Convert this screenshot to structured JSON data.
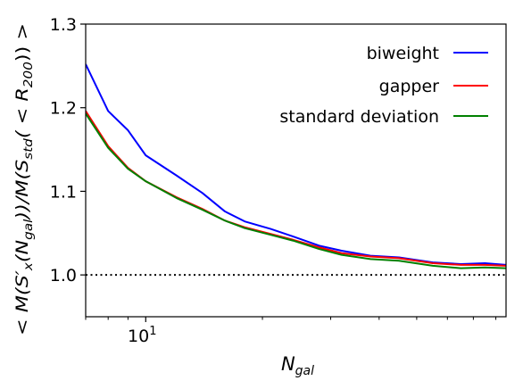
{
  "chart_data": {
    "type": "line",
    "title": "",
    "xlabel": {
      "base": "N",
      "sub": "gal"
    },
    "ylabel": {
      "parts": [
        {
          "t": "< M(S′",
          "k": "n"
        },
        {
          "t": "x",
          "k": "sub"
        },
        {
          "t": "(N",
          "k": "n"
        },
        {
          "t": "gal",
          "k": "sub"
        },
        {
          "t": "))/M(S",
          "k": "n"
        },
        {
          "t": "std",
          "k": "sub"
        },
        {
          "t": "( < R",
          "k": "n"
        },
        {
          "t": "200",
          "k": "sub"
        },
        {
          "t": ")) >",
          "k": "n"
        }
      ]
    },
    "xscale": "log",
    "xlim": [
      7,
      85
    ],
    "ylim": [
      0.95,
      1.3
    ],
    "xticks": [
      {
        "value": 10,
        "base": "10",
        "exp": "1"
      }
    ],
    "yticks": [
      {
        "value": 1.0,
        "label": "1.0"
      },
      {
        "value": 1.1,
        "label": "1.1"
      },
      {
        "value": 1.2,
        "label": "1.2"
      },
      {
        "value": 1.3,
        "label": "1.3"
      }
    ],
    "reference_line": {
      "y": 1.0,
      "style": "dotted",
      "color": "#000000"
    },
    "legend_position": "top-right",
    "x": [
      7,
      8,
      9,
      10,
      12,
      14,
      16,
      18,
      21,
      24,
      28,
      32,
      38,
      45,
      55,
      65,
      75,
      85
    ],
    "series": [
      {
        "name": "biweight",
        "color": "#0000ff",
        "values": [
          1.252,
          1.196,
          1.173,
          1.143,
          1.119,
          1.098,
          1.076,
          1.064,
          1.055,
          1.046,
          1.035,
          1.029,
          1.023,
          1.021,
          1.015,
          1.013,
          1.014,
          1.012
        ]
      },
      {
        "name": "gapper",
        "color": "#ff0000",
        "values": [
          1.196,
          1.154,
          1.128,
          1.112,
          1.093,
          1.079,
          1.065,
          1.057,
          1.049,
          1.042,
          1.033,
          1.026,
          1.022,
          1.02,
          1.014,
          1.012,
          1.012,
          1.011
        ]
      },
      {
        "name": "standard deviation",
        "color": "#008000",
        "values": [
          1.193,
          1.152,
          1.127,
          1.112,
          1.092,
          1.078,
          1.065,
          1.056,
          1.048,
          1.041,
          1.031,
          1.024,
          1.019,
          1.017,
          1.011,
          1.008,
          1.009,
          1.008
        ]
      }
    ]
  }
}
